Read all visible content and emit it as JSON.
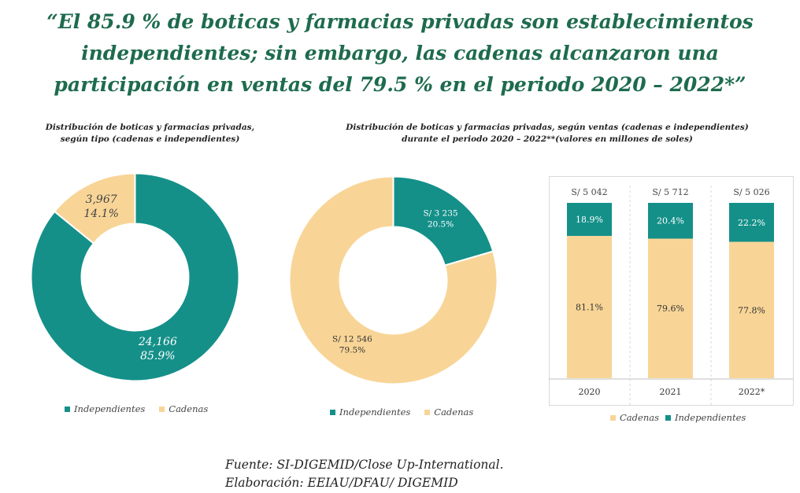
{
  "headline": [
    "“El 85.9 % de boticas y farmacias privadas son establecimientos",
    "independientes; sin embargo, las cadenas alcanzaron una",
    "participación en ventas del 79.5 % en el periodo 2020 – 2022*”"
  ],
  "colors": {
    "independientes": "#149089",
    "cadenas": "#f8d597",
    "headline": "#1e6b4e"
  },
  "chart_data": [
    {
      "type": "pie",
      "title": [
        "Distribución de boticas y farmacias privadas,",
        "según tipo (cadenas e independientes)"
      ],
      "slices": [
        {
          "name": "Independientes",
          "value": 24166,
          "label": "24,166",
          "pct": "85.9%"
        },
        {
          "name": "Cadenas",
          "value": 3967,
          "label": "3,967",
          "pct": "14.1%"
        }
      ],
      "legend": [
        "Independientes",
        "Cadenas"
      ]
    },
    {
      "type": "pie",
      "title": [
        "Distribución de boticas y farmacias privadas, según ventas (cadenas e independientes)",
        "durante el periodo 2020 – 2022**(valores en millones de soles)"
      ],
      "slices": [
        {
          "name": "Independientes",
          "value": 3235,
          "label": "S/ 3 235",
          "pct": "20.5%"
        },
        {
          "name": "Cadenas",
          "value": 12546,
          "label": "S/ 12 546",
          "pct": "79.5%"
        }
      ],
      "legend": [
        "Independientes",
        "Cadenas"
      ]
    },
    {
      "type": "bar",
      "stacked": true,
      "percent": true,
      "categories": [
        "2020",
        "2021",
        "2022*"
      ],
      "totals": [
        "S/ 5 042",
        "S/ 5 712",
        "S/ 5 026"
      ],
      "series": [
        {
          "name": "Cadenas",
          "values": [
            81.1,
            79.6,
            77.8
          ],
          "labels": [
            "81.1%",
            "79.6%",
            "77.8%"
          ]
        },
        {
          "name": "Independientes",
          "values": [
            18.9,
            20.4,
            22.2
          ],
          "labels": [
            "18.9%",
            "20.4%",
            "22.2%"
          ]
        }
      ],
      "legend": [
        "Cadenas",
        "Independientes"
      ],
      "ylim": [
        0,
        100
      ]
    }
  ],
  "footer": {
    "source": "Fuente: SI-DIGEMID/Close Up-International.",
    "author": "Elaboración: EEIAU/DFAU/ DIGEMID"
  }
}
